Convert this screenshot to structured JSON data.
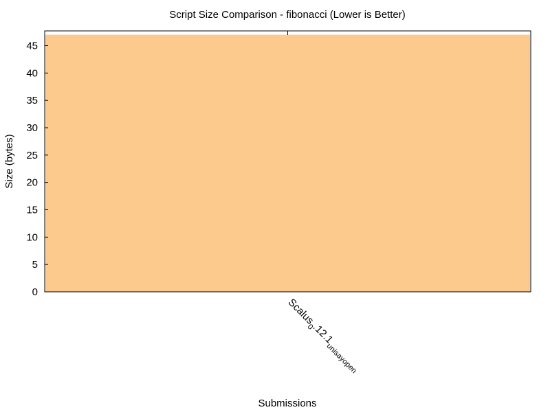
{
  "chart_data": {
    "type": "bar",
    "title": "Script Size Comparison - fibonacci (Lower is Better)",
    "xlabel": "Submissions",
    "ylabel": "Size (bytes)",
    "categories": [
      "Scalus_0.12.1_unisay_open"
    ],
    "category_display": {
      "main1": "Scalus",
      "sub1": "0",
      "main2": ".12.1",
      "sub2": "unisay",
      "main3": "",
      "sub3": "open"
    },
    "values": [
      47
    ],
    "ylim": [
      0,
      47.7
    ],
    "yticks": [
      0,
      5,
      10,
      15,
      20,
      25,
      30,
      35,
      40,
      45
    ],
    "bar_color": "#fdca8e",
    "grid": false,
    "legend": "none"
  }
}
